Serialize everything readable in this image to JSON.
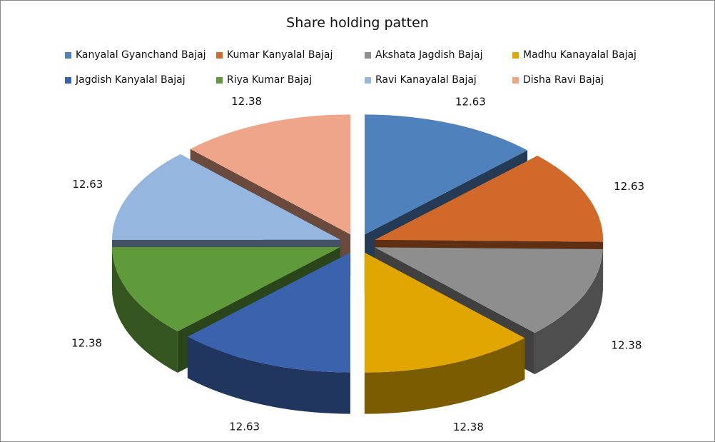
{
  "chart_data": {
    "type": "pie",
    "title": "Share holding patten",
    "legend_position": "top",
    "series": [
      {
        "name": "Kanyalal Gyanchand Bajaj",
        "value": 12.63,
        "label": "12.63",
        "color": "#4f81bd"
      },
      {
        "name": "Kumar Kanyalal Bajaj",
        "value": 12.63,
        "label": "12.63",
        "color": "#d0692a"
      },
      {
        "name": "Akshata Jagdish Bajaj",
        "value": 12.38,
        "label": "12.38",
        "color": "#8e8e8e"
      },
      {
        "name": "Madhu Kanayalal Bajaj",
        "value": 12.38,
        "label": "12.38",
        "color": "#e1a700"
      },
      {
        "name": "Jagdish Kanyalal Bajaj",
        "value": 12.63,
        "label": "12.63",
        "color": "#3a62ad"
      },
      {
        "name": "Riya Kumar Bajaj",
        "value": 12.38,
        "label": "12.38",
        "color": "#5f9a3b"
      },
      {
        "name": "Ravi Kanayalal Bajaj",
        "value": 12.63,
        "label": "12.63",
        "color": "#95b6de"
      },
      {
        "name": "Disha Ravi Bajaj",
        "value": 12.38,
        "label": "12.38",
        "color": "#eea58a"
      }
    ]
  }
}
